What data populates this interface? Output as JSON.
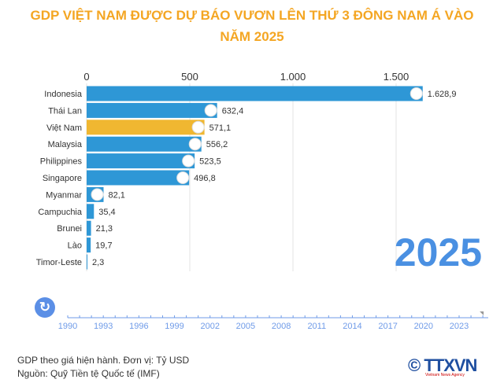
{
  "title_lines": [
    "GDP VIỆT NAM ĐƯỢC DỰ BÁO VƯƠN LÊN THỨ 3 ĐÔNG NAM Á VÀO",
    "NĂM 2025"
  ],
  "chart_data": {
    "type": "bar",
    "orientation": "horizontal",
    "categories": [
      "Indonesia",
      "Thái Lan",
      "Việt Nam",
      "Malaysia",
      "Philippines",
      "Singapore",
      "Myanmar",
      "Campuchia",
      "Brunei",
      "Lào",
      "Timor-Leste"
    ],
    "values": [
      1628.9,
      632.4,
      571.1,
      556.2,
      523.5,
      496.8,
      82.1,
      35.4,
      21.3,
      19.7,
      2.3
    ],
    "value_labels": [
      "1.628,9",
      "632,4",
      "571,1",
      "556,2",
      "523,5",
      "496,8",
      "82,1",
      "35,4",
      "21,3",
      "19,7",
      "2,3"
    ],
    "highlight": "Việt Nam",
    "xlim": [
      0,
      1650
    ],
    "x_ticks": [
      0,
      500,
      1000,
      1500
    ],
    "x_tick_labels": [
      "0",
      "500",
      "1.000",
      "1.500"
    ],
    "axis_position": "top",
    "grid": true,
    "year": "2025"
  },
  "colors": {
    "bar": "#2e97d6",
    "highlight": "#f0b731",
    "title": "#f4a623",
    "year": "#4a90e2",
    "timeline": "#6f9be8"
  },
  "timeline": {
    "labels": [
      "1990",
      "1993",
      "1996",
      "1999",
      "2002",
      "2005",
      "2008",
      "2011",
      "2014",
      "2017",
      "2020",
      "2023"
    ],
    "start": 1990,
    "end": 2025,
    "current": 2025,
    "play_icon": "replay-icon"
  },
  "notes": [
    "GDP theo giá hiện hành. Đơn vị: Tỷ USD",
    "Nguồn: Quỹ Tiền tệ Quốc tế (IMF)"
  ],
  "logo": {
    "text": "© TTXVN",
    "sub": "Vietnam News Agency"
  }
}
